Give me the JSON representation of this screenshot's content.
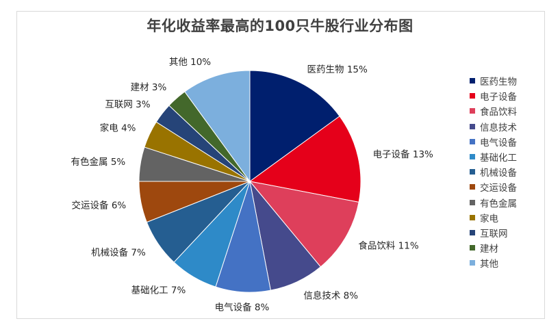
{
  "chart_data": {
    "type": "pie",
    "title": "年化收益率最高的100只牛股行业分布图",
    "slices": [
      {
        "name": "医药生物",
        "value": 15,
        "color": "#001f6e"
      },
      {
        "name": "电子设备",
        "value": 13,
        "color": "#e5001a"
      },
      {
        "name": "食品饮料",
        "value": 11,
        "color": "#de3f5b"
      },
      {
        "name": "信息技术",
        "value": 8,
        "color": "#454a8c"
      },
      {
        "name": "电气设备",
        "value": 8,
        "color": "#4472c4"
      },
      {
        "name": "基础化工",
        "value": 7,
        "color": "#2e8ac8"
      },
      {
        "name": "机械设备",
        "value": 7,
        "color": "#255e91"
      },
      {
        "name": "交运设备",
        "value": 6,
        "color": "#9e480e"
      },
      {
        "name": "有色金属",
        "value": 5,
        "color": "#636363"
      },
      {
        "name": "家电",
        "value": 4,
        "color": "#997300"
      },
      {
        "name": "互联网",
        "value": 3,
        "color": "#264478"
      },
      {
        "name": "建材",
        "value": 3,
        "color": "#43682b"
      },
      {
        "name": "其他",
        "value": 10,
        "color": "#7cafdd"
      }
    ],
    "unit_suffix": "%",
    "legend_position": "right"
  }
}
